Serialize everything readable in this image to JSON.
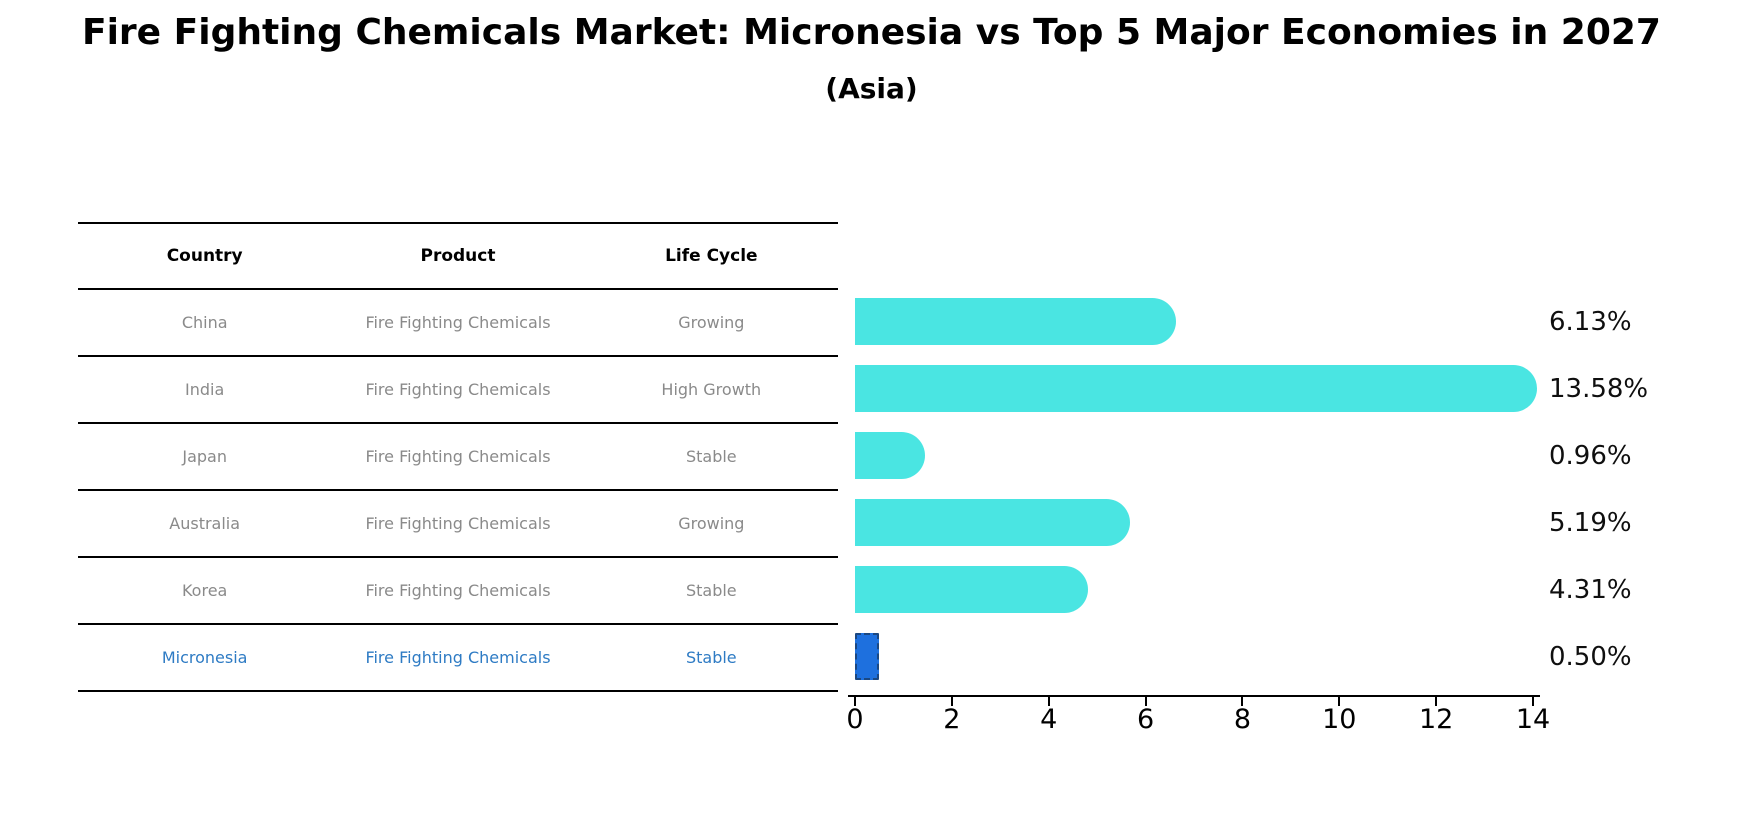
{
  "title": "Fire Fighting Chemicals Market: Micronesia vs Top 5 Major Economies in 2027",
  "subtitle": "(Asia)",
  "table": {
    "headers": [
      "Country",
      "Product",
      "Life Cycle"
    ],
    "rows": [
      {
        "country": "China",
        "product": "Fire Fighting Chemicals",
        "life_cycle": "Growing",
        "highlighted": false
      },
      {
        "country": "India",
        "product": "Fire Fighting Chemicals",
        "life_cycle": "High Growth",
        "highlighted": false
      },
      {
        "country": "Japan",
        "product": "Fire Fighting Chemicals",
        "life_cycle": "Stable",
        "highlighted": false
      },
      {
        "country": "Australia",
        "product": "Fire Fighting Chemicals",
        "life_cycle": "Growing",
        "highlighted": false
      },
      {
        "country": "Korea",
        "product": "Fire Fighting Chemicals",
        "life_cycle": "Stable",
        "highlighted": false
      },
      {
        "country": "Micronesia",
        "product": "Fire Fighting Chemicals",
        "life_cycle": "Stable",
        "highlighted": true
      }
    ]
  },
  "chart_data": {
    "type": "bar",
    "orientation": "horizontal",
    "title": "Fire Fighting Chemicals Market: Micronesia vs Top 5 Major Economies in 2027 (Asia)",
    "categories": [
      "China",
      "India",
      "Japan",
      "Australia",
      "Korea",
      "Micronesia"
    ],
    "values": [
      6.13,
      13.58,
      0.96,
      5.19,
      4.31,
      0.5
    ],
    "value_labels": [
      "6.13%",
      "13.58%",
      "0.96%",
      "5.19%",
      "4.31%",
      "0.50%"
    ],
    "xlim": [
      0,
      14
    ],
    "xticks": [
      "0",
      "2",
      "4",
      "6",
      "8",
      "10",
      "12",
      "14"
    ],
    "xlabel": "",
    "ylabel": "",
    "grid": false,
    "legend": false,
    "bar_color": "#4ae5e2",
    "highlight_bar_color": "#1e70de",
    "highlight_index": 5
  },
  "colors": {
    "background": "#ffffff",
    "title_text": "#000000",
    "table_line": "#000000",
    "row_text": "#8a8a8a",
    "highlight_text": "#2e7bc4",
    "axis": "#000000",
    "value_label_text": "#0f0f0f"
  }
}
